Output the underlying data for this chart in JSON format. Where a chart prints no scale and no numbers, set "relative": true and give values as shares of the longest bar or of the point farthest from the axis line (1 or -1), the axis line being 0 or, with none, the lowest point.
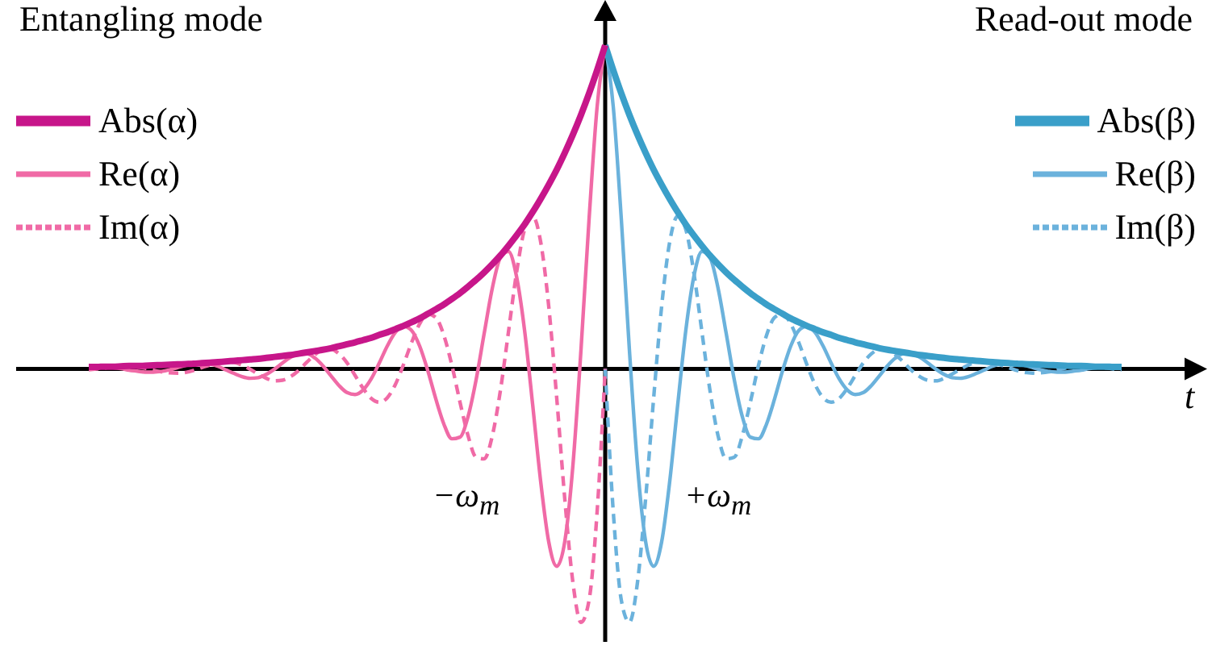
{
  "chart_data": {
    "type": "line",
    "relative": true,
    "legend": "top",
    "xlabel": "t",
    "annotations": [
      "Entangling mode",
      "Read-out mode",
      "−ω$_{m}$",
      "+ω$_{m}$"
    ],
    "categories": [
      null,
      null,
      null,
      null,
      null,
      null,
      null,
      null,
      null,
      null,
      null,
      null,
      null,
      null,
      null,
      null,
      null,
      null,
      null,
      null,
      null,
      null,
      null,
      null,
      null,
      null,
      null,
      null,
      null,
      null,
      null,
      null,
      null,
      null,
      null,
      null,
      null,
      null,
      null,
      null,
      null,
      null,
      null,
      null,
      null,
      null,
      null,
      null,
      null,
      null,
      null,
      null,
      null,
      null,
      null,
      null,
      null,
      null,
      null,
      null,
      null,
      null,
      null,
      null,
      null,
      null,
      null,
      null,
      null,
      null,
      null,
      null,
      null,
      null,
      null,
      null,
      null,
      null,
      null,
      null,
      null,
      null,
      null,
      null,
      null,
      null,
      null,
      null,
      null,
      null,
      null,
      null,
      null,
      null,
      null,
      null,
      null,
      null,
      null,
      null,
      null,
      null,
      null,
      null,
      null,
      null,
      null,
      null,
      null,
      null,
      null,
      null,
      null,
      null,
      null,
      null,
      null,
      null,
      null,
      null,
      null,
      null,
      null,
      null,
      null,
      null,
      null,
      null,
      null
    ],
    "series": [
      {
        "name": "Abs(α)",
        "color": "#c7168a",
        "line_style": "solid",
        "values": [
          0.006,
          0.006,
          0.007,
          0.007,
          0.008,
          0.009,
          0.009,
          0.01,
          0.011,
          0.012,
          0.013,
          0.014,
          0.015,
          0.016,
          0.018,
          0.019,
          0.021,
          0.023,
          0.025,
          0.027,
          0.029,
          0.031,
          0.034,
          0.037,
          0.04,
          0.043,
          0.047,
          0.051,
          0.055,
          0.059,
          0.064,
          0.07,
          0.076,
          0.082,
          0.089,
          0.096,
          0.105,
          0.113,
          0.123,
          0.133,
          0.144,
          0.156,
          0.17,
          0.184,
          0.199,
          0.216,
          0.234,
          0.254,
          0.275,
          0.298,
          0.323,
          0.35,
          0.38,
          0.412,
          0.446,
          0.484,
          0.525,
          0.569,
          0.616,
          0.668,
          0.724,
          0.785,
          0.851,
          0.923,
          1,
          null,
          null,
          null,
          null,
          null,
          null,
          null,
          null,
          null,
          null,
          null,
          null,
          null,
          null,
          null,
          null,
          null,
          null,
          null,
          null,
          null,
          null,
          null,
          null,
          null,
          null,
          null,
          null,
          null,
          null,
          null,
          null,
          null,
          null,
          null,
          null,
          null,
          null,
          null,
          null,
          null,
          null,
          null,
          null,
          null,
          null,
          null,
          null,
          null,
          null,
          null,
          null,
          null,
          null,
          null,
          null,
          null,
          null,
          null,
          null,
          null,
          null,
          null,
          null
        ]
      },
      {
        "name": "Re(α)",
        "color": "#f06aa6",
        "line_style": "solid",
        "values": [
          0.005,
          0.006,
          0.006,
          0.004,
          0.001,
          -0.004,
          -0.007,
          -0.01,
          -0.01,
          -0.008,
          -0.003,
          0.004,
          0.011,
          0.016,
          0.017,
          0.015,
          0.008,
          -0.003,
          -0.014,
          -0.024,
          -0.029,
          -0.027,
          -0.017,
          -0.001,
          0.018,
          0.036,
          0.046,
          0.047,
          0.034,
          0.01,
          -0.021,
          -0.051,
          -0.073,
          -0.079,
          -0.065,
          -0.031,
          0.018,
          0.071,
          0.113,
          0.132,
          0.119,
          0.071,
          -0.004,
          -0.092,
          -0.17,
          -0.216,
          -0.211,
          -0.148,
          -0.034,
          0.109,
          0.248,
          0.343,
          0.363,
          0.287,
          0.121,
          -0.108,
          -0.347,
          -0.534,
          -0.61,
          -0.532,
          -0.298,
          0.059,
          0.462,
          0.81,
          1,
          null,
          null,
          null,
          null,
          null,
          null,
          null,
          null,
          null,
          null,
          null,
          null,
          null,
          null,
          null,
          null,
          null,
          null,
          null,
          null,
          null,
          null,
          null,
          null,
          null,
          null,
          null,
          null,
          null,
          null,
          null,
          null,
          null,
          null,
          null,
          null,
          null,
          null,
          null,
          null,
          null,
          null,
          null,
          null,
          null,
          null,
          null,
          null,
          null,
          null,
          null,
          null,
          null,
          null,
          null,
          null,
          null,
          null,
          null,
          null,
          null,
          null,
          null,
          null
        ]
      },
      {
        "name": "Im(α)",
        "color": "#f06aa6",
        "line_style": "dashed",
        "values": [
          -0.003,
          0,
          0.003,
          0.006,
          0.008,
          0.008,
          0.006,
          0.002,
          -0.004,
          -0.009,
          -0.012,
          -0.013,
          -0.011,
          -0.005,
          0.004,
          0.012,
          0.019,
          0.022,
          0.02,
          0.012,
          -0.001,
          -0.016,
          -0.029,
          -0.037,
          -0.035,
          -0.024,
          -0.005,
          0.02,
          0.043,
          0.059,
          0.061,
          0.047,
          0.019,
          -0.02,
          -0.06,
          -0.091,
          -0.103,
          -0.089,
          -0.048,
          0.013,
          0.081,
          0.139,
          0.17,
          0.159,
          0.104,
          0.011,
          -0.102,
          -0.206,
          -0.273,
          -0.278,
          -0.208,
          -0.069,
          0.112,
          0.295,
          0.43,
          0.472,
          0.393,
          0.194,
          -0.092,
          -0.404,
          -0.66,
          -0.783,
          -0.715,
          -0.441,
          0,
          null,
          null,
          null,
          null,
          null,
          null,
          null,
          null,
          null,
          null,
          null,
          null,
          null,
          null,
          null,
          null,
          null,
          null,
          null,
          null,
          null,
          null,
          null,
          null,
          null,
          null,
          null,
          null,
          null,
          null,
          null,
          null,
          null,
          null,
          null,
          null,
          null,
          null,
          null,
          null,
          null,
          null,
          null,
          null,
          null,
          null,
          null,
          null,
          null,
          null,
          null,
          null,
          null,
          null,
          null,
          null,
          null,
          null,
          null,
          null,
          null,
          null,
          null,
          null
        ]
      },
      {
        "name": "Abs(β)",
        "color": "#3a9fc9",
        "line_style": "solid",
        "values": [
          null,
          null,
          null,
          null,
          null,
          null,
          null,
          null,
          null,
          null,
          null,
          null,
          null,
          null,
          null,
          null,
          null,
          null,
          null,
          null,
          null,
          null,
          null,
          null,
          null,
          null,
          null,
          null,
          null,
          null,
          null,
          null,
          null,
          null,
          null,
          null,
          null,
          null,
          null,
          null,
          null,
          null,
          null,
          null,
          null,
          null,
          null,
          null,
          null,
          null,
          null,
          null,
          null,
          null,
          null,
          null,
          null,
          null,
          null,
          null,
          null,
          null,
          null,
          null,
          1,
          0.923,
          0.851,
          0.785,
          0.724,
          0.668,
          0.616,
          0.569,
          0.525,
          0.484,
          0.446,
          0.412,
          0.38,
          0.35,
          0.323,
          0.298,
          0.275,
          0.254,
          0.234,
          0.216,
          0.199,
          0.184,
          0.17,
          0.156,
          0.144,
          0.133,
          0.123,
          0.113,
          0.105,
          0.096,
          0.089,
          0.082,
          0.076,
          0.07,
          0.064,
          0.059,
          0.055,
          0.051,
          0.047,
          0.043,
          0.04,
          0.037,
          0.034,
          0.031,
          0.029,
          0.027,
          0.025,
          0.023,
          0.021,
          0.019,
          0.018,
          0.016,
          0.015,
          0.014,
          0.013,
          0.012,
          0.011,
          0.01,
          0.009,
          0.009,
          0.008,
          0.007,
          0.007,
          0.006,
          0.006
        ]
      },
      {
        "name": "Re(β)",
        "color": "#6bb2dc",
        "line_style": "solid",
        "values": [
          null,
          null,
          null,
          null,
          null,
          null,
          null,
          null,
          null,
          null,
          null,
          null,
          null,
          null,
          null,
          null,
          null,
          null,
          null,
          null,
          null,
          null,
          null,
          null,
          null,
          null,
          null,
          null,
          null,
          null,
          null,
          null,
          null,
          null,
          null,
          null,
          null,
          null,
          null,
          null,
          null,
          null,
          null,
          null,
          null,
          null,
          null,
          null,
          null,
          null,
          null,
          null,
          null,
          null,
          null,
          null,
          null,
          null,
          null,
          null,
          null,
          null,
          null,
          null,
          1,
          0.81,
          0.462,
          0.059,
          -0.298,
          -0.532,
          -0.61,
          -0.534,
          -0.347,
          -0.108,
          0.121,
          0.287,
          0.363,
          0.343,
          0.248,
          0.109,
          -0.034,
          -0.148,
          -0.211,
          -0.216,
          -0.17,
          -0.092,
          -0.004,
          0.071,
          0.119,
          0.132,
          0.113,
          0.071,
          0.018,
          -0.031,
          -0.065,
          -0.079,
          -0.073,
          -0.051,
          -0.021,
          0.01,
          0.034,
          0.047,
          0.046,
          0.036,
          0.018,
          -0.001,
          -0.017,
          -0.027,
          -0.029,
          -0.024,
          -0.014,
          -0.003,
          0.008,
          0.015,
          0.017,
          0.016,
          0.011,
          0.004,
          -0.003,
          -0.008,
          -0.01,
          -0.01,
          -0.007,
          -0.004,
          0.001,
          0.004,
          0.006,
          0.006,
          0.005
        ]
      },
      {
        "name": "Im(β)",
        "color": "#6bb2dc",
        "line_style": "dashed",
        "values": [
          null,
          null,
          null,
          null,
          null,
          null,
          null,
          null,
          null,
          null,
          null,
          null,
          null,
          null,
          null,
          null,
          null,
          null,
          null,
          null,
          null,
          null,
          null,
          null,
          null,
          null,
          null,
          null,
          null,
          null,
          null,
          null,
          null,
          null,
          null,
          null,
          null,
          null,
          null,
          null,
          null,
          null,
          null,
          null,
          null,
          null,
          null,
          null,
          null,
          null,
          null,
          null,
          null,
          null,
          null,
          null,
          null,
          null,
          null,
          null,
          null,
          null,
          null,
          null,
          0,
          -0.441,
          -0.715,
          -0.783,
          -0.66,
          -0.404,
          -0.092,
          0.194,
          0.393,
          0.472,
          0.43,
          0.295,
          0.112,
          -0.069,
          -0.208,
          -0.278,
          -0.273,
          -0.206,
          -0.102,
          0.011,
          0.104,
          0.159,
          0.17,
          0.139,
          0.081,
          0.013,
          -0.048,
          -0.089,
          -0.103,
          -0.091,
          -0.06,
          -0.02,
          0.019,
          0.047,
          0.061,
          0.059,
          0.043,
          0.02,
          -0.005,
          -0.024,
          -0.035,
          -0.037,
          -0.029,
          -0.016,
          -0.001,
          0.012,
          0.02,
          0.022,
          0.019,
          0.012,
          0.004,
          -0.005,
          -0.011,
          -0.013,
          -0.012,
          -0.009,
          -0.004,
          0.002,
          0.006,
          0.008,
          0.008,
          0.006,
          0.003,
          0,
          -0.003
        ]
      }
    ]
  }
}
